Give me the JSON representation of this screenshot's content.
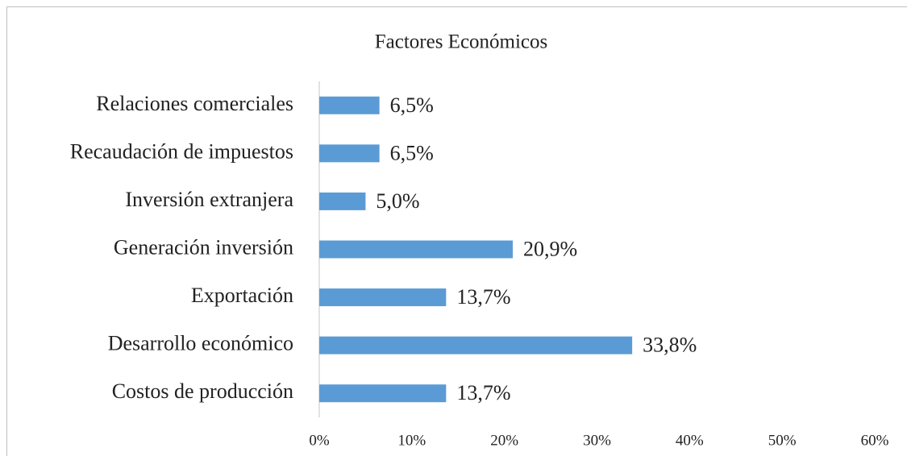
{
  "chart_data": {
    "type": "bar",
    "orientation": "horizontal",
    "title": "Factores Económicos",
    "categories": [
      "Relaciones comerciales",
      "Recaudación de impuestos",
      "Inversión extranjera",
      "Generación inversión",
      "Exportación",
      "Desarrollo económico",
      "Costos de producción"
    ],
    "values": [
      6.5,
      6.5,
      5.0,
      20.9,
      13.7,
      33.8,
      13.7
    ],
    "value_labels": [
      "6,5%",
      "6,5%",
      "5,0%",
      "20,9%",
      "13,7%",
      "33,8%",
      "13,7%"
    ],
    "color": "#5b9bd5",
    "xlim": [
      0,
      60
    ],
    "xticks": [
      {
        "value": 0,
        "label": "0%"
      },
      {
        "value": 10,
        "label": "10%"
      },
      {
        "value": 20,
        "label": "20%"
      },
      {
        "value": 30,
        "label": "30%"
      },
      {
        "value": 40,
        "label": "40%"
      },
      {
        "value": 50,
        "label": "50%"
      },
      {
        "value": 60,
        "label": "60%"
      }
    ],
    "grid": false
  }
}
